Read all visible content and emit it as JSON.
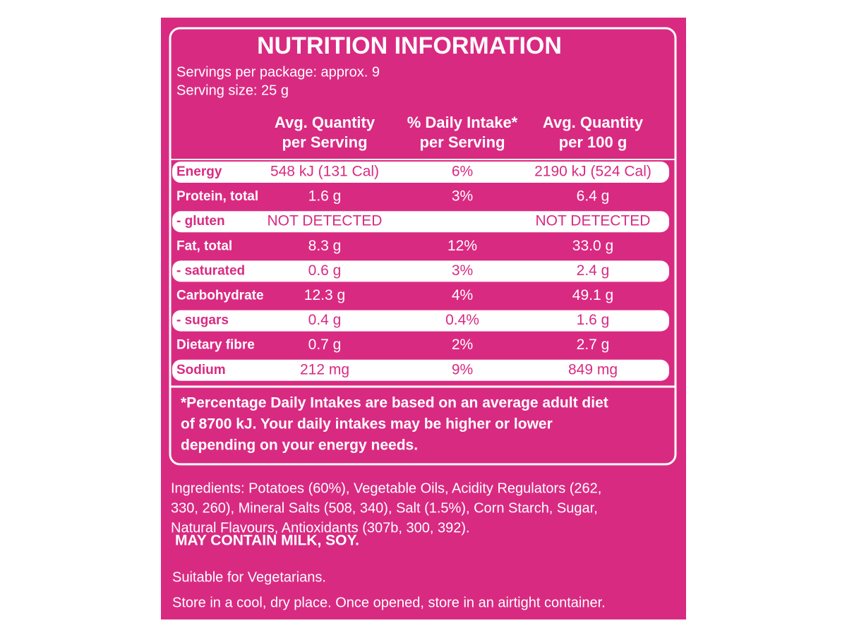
{
  "title": "NUTRITION INFORMATION",
  "servings_per_package": "Servings per package: approx. 9",
  "serving_size": "Serving size: 25 g",
  "table": {
    "header": [
      [
        "Avg. Quantity",
        "per Serving"
      ],
      [
        "% Daily Intake*",
        "per Serving"
      ],
      [
        "Avg. Quantity",
        "per 100 g"
      ]
    ],
    "rows": [
      [
        "Energy",
        "548 kJ (131 Cal)",
        "6%",
        "2190 kJ (524 Cal)"
      ],
      [
        "Protein, total",
        "1.6 g",
        "3%",
        "6.4 g"
      ],
      [
        "- gluten",
        "NOT DETECTED",
        null,
        "NOT DETECTED"
      ],
      [
        "Fat, total",
        "8.3 g",
        "12%",
        "33.0 g"
      ],
      [
        "- saturated",
        "0.6 g",
        "3%",
        "2.4 g"
      ],
      [
        "Carbohydrate",
        "12.3 g",
        "4%",
        "49.1 g"
      ],
      [
        "- sugars",
        "0.4 g",
        "0.4%",
        "1.6 g"
      ],
      [
        "Dietary fibre",
        "0.7 g",
        "2%",
        "2.7 g"
      ],
      [
        "Sodium",
        "212 mg",
        "9%",
        "849 mg"
      ]
    ]
  },
  "footnote": [
    "*Percentage Daily Intakes are based on an average adult diet",
    "of 8700 kJ. Your daily intakes may be higher or lower",
    "depending on your energy needs."
  ],
  "ingredients": [
    "Ingredients: Potatoes (60%), Vegetable Oils, Acidity Regulators (262,",
    "330, 260), Mineral Salts (508, 340), Salt (1.5%), Corn Starch, Sugar,",
    "Natural Flavours, Antioxidants (307b, 300, 392)."
  ],
  "allergens": "MAY CONTAIN MILK, SOY.",
  "suitable": "Suitable for Vegetarians.",
  "storage": "Store in a cool, dry place. Once opened, store in an airtight container."
}
